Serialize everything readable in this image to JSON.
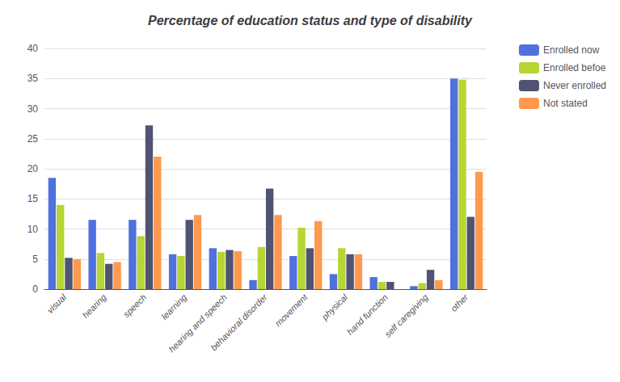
{
  "chart_data": {
    "type": "bar",
    "title": "Percentage of education status and type of disability",
    "categories": [
      "visual",
      "hearing",
      "speech",
      "learning",
      "hearing and speech",
      "behavioral disorder",
      "movement",
      "physical",
      "hand function",
      "self caregiving",
      "other"
    ],
    "series": [
      {
        "name": "Enrolled now",
        "values": [
          18.5,
          11.5,
          11.5,
          5.8,
          6.8,
          1.5,
          5.5,
          2.5,
          2.0,
          0.5,
          35.0
        ]
      },
      {
        "name": "Enrolled befoe",
        "values": [
          14.0,
          6.0,
          8.8,
          5.5,
          6.2,
          7.0,
          10.2,
          6.8,
          1.2,
          1.0,
          34.8
        ]
      },
      {
        "name": "Never enrolled",
        "values": [
          5.2,
          4.2,
          27.2,
          11.5,
          6.5,
          16.7,
          6.8,
          5.8,
          1.2,
          3.2,
          12.0
        ]
      },
      {
        "name": "Not stated",
        "values": [
          5.0,
          4.5,
          22.0,
          12.3,
          6.3,
          12.3,
          11.3,
          5.8,
          0.0,
          1.5,
          19.5
        ]
      }
    ],
    "ylim": [
      0,
      40
    ],
    "yticks": [
      0,
      5,
      10,
      15,
      20,
      25,
      30,
      35,
      40
    ],
    "grid": true,
    "legend": "right"
  }
}
